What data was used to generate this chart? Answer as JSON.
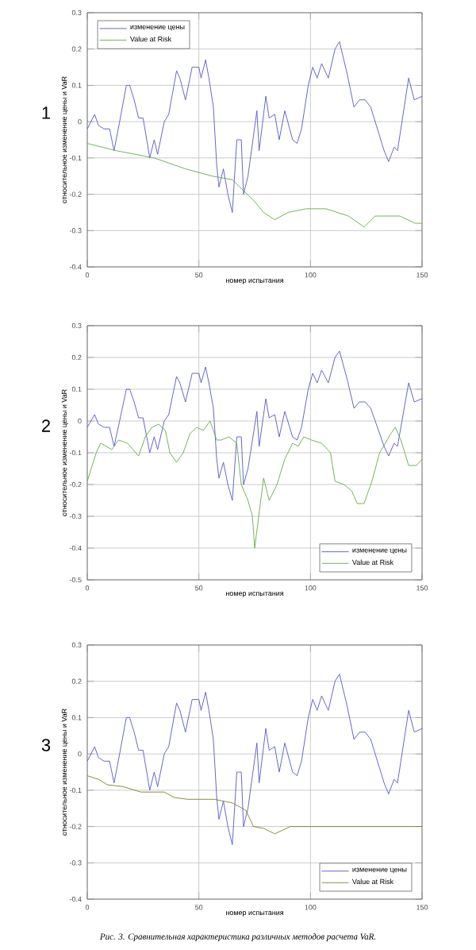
{
  "chart_data": [
    {
      "type": "line",
      "title": "1",
      "xlabel": "номер испытания",
      "ylabel": "относительное изменение цены и VaR",
      "xlim": [
        0,
        150
      ],
      "ylim": [
        -0.4,
        0.3
      ],
      "xticks": [
        0,
        50,
        100,
        150
      ],
      "yticks": [
        -0.4,
        -0.3,
        -0.2,
        -0.1,
        0,
        0.1,
        0.2,
        0.3
      ],
      "grid": true,
      "legend": "top left",
      "series": [
        {
          "name": "изменение цены",
          "color": "#5555cc",
          "x": [
            0,
            3.3,
            5,
            7.5,
            10,
            12,
            14.5,
            17.5,
            19,
            21,
            23,
            25,
            28,
            30,
            31.5,
            34.5,
            36.5,
            40,
            41.5,
            44,
            47,
            50,
            51,
            53,
            54.5,
            56.5,
            58,
            59,
            61,
            63,
            65,
            67,
            69,
            70,
            72,
            76,
            77,
            80,
            81.5,
            84,
            86,
            88.5,
            92,
            94,
            96,
            99,
            101,
            103,
            105,
            108,
            111,
            113,
            116.5,
            119.5,
            122,
            124.5,
            127,
            130,
            133,
            135,
            137.5,
            139,
            140.5,
            144,
            146.5,
            150
          ],
          "values": [
            -0.02,
            0.02,
            -0.01,
            -0.02,
            -0.02,
            -0.08,
            0.0,
            0.1,
            0.1,
            0.06,
            0.01,
            0.01,
            -0.1,
            -0.05,
            -0.09,
            0.0,
            0.02,
            0.14,
            0.12,
            0.06,
            0.15,
            0.15,
            0.12,
            0.17,
            0.12,
            0.04,
            -0.12,
            -0.18,
            -0.13,
            -0.2,
            -0.25,
            -0.05,
            -0.05,
            -0.2,
            -0.15,
            0.03,
            -0.08,
            0.07,
            0.01,
            0.02,
            -0.05,
            0.03,
            -0.05,
            -0.06,
            -0.02,
            0.1,
            0.15,
            0.12,
            0.16,
            0.12,
            0.2,
            0.22,
            0.13,
            0.04,
            0.06,
            0.06,
            0.04,
            -0.02,
            -0.08,
            -0.11,
            -0.07,
            -0.08,
            -0.02,
            0.12,
            0.06,
            0.07
          ]
        },
        {
          "name": "Value at Risk",
          "color": "#66aa44",
          "x": [
            0,
            13,
            30,
            44,
            56,
            65,
            75,
            79,
            84,
            90,
            98,
            107,
            117,
            124,
            129,
            140,
            147,
            150
          ],
          "values": [
            -0.06,
            -0.08,
            -0.1,
            -0.13,
            -0.15,
            -0.16,
            -0.22,
            -0.25,
            -0.27,
            -0.25,
            -0.24,
            -0.24,
            -0.26,
            -0.29,
            -0.26,
            -0.26,
            -0.28,
            -0.28
          ]
        }
      ]
    },
    {
      "type": "line",
      "title": "2",
      "xlabel": "номер испытания",
      "ylabel": "относительное изменение цены и VaR",
      "xlim": [
        0,
        150
      ],
      "ylim": [
        -0.5,
        0.3
      ],
      "xticks": [
        0,
        50,
        100,
        150
      ],
      "yticks": [
        -0.5,
        -0.4,
        -0.3,
        -0.2,
        -0.1,
        0,
        0.1,
        0.2,
        0.3
      ],
      "grid": true,
      "legend": "bottom right",
      "series": [
        {
          "name": "изменение цены",
          "color": "#5555cc",
          "x": [
            0,
            3.3,
            5,
            7.5,
            10,
            12,
            14.5,
            17.5,
            19,
            21,
            23,
            25,
            28,
            30,
            31.5,
            34.5,
            36.5,
            40,
            41.5,
            44,
            47,
            50,
            51,
            53,
            54.5,
            56.5,
            58,
            59,
            61,
            63,
            65,
            67,
            69,
            70,
            72,
            76,
            77,
            80,
            81.5,
            84,
            86,
            88.5,
            92,
            94,
            96,
            99,
            101,
            103,
            105,
            108,
            111,
            113,
            116.5,
            119.5,
            122,
            124.5,
            127,
            130,
            133,
            135,
            137.5,
            139,
            140.5,
            144,
            146.5,
            150
          ],
          "values": [
            -0.02,
            0.02,
            -0.01,
            -0.02,
            -0.02,
            -0.08,
            0.0,
            0.1,
            0.1,
            0.06,
            0.01,
            0.01,
            -0.1,
            -0.05,
            -0.09,
            0.0,
            0.02,
            0.14,
            0.12,
            0.06,
            0.15,
            0.15,
            0.12,
            0.17,
            0.12,
            0.04,
            -0.12,
            -0.18,
            -0.13,
            -0.2,
            -0.25,
            -0.05,
            -0.05,
            -0.2,
            -0.15,
            0.03,
            -0.08,
            0.07,
            0.01,
            0.02,
            -0.05,
            0.03,
            -0.05,
            -0.06,
            -0.02,
            0.1,
            0.15,
            0.12,
            0.16,
            0.12,
            0.2,
            0.22,
            0.13,
            0.04,
            0.06,
            0.06,
            0.04,
            -0.02,
            -0.08,
            -0.11,
            -0.07,
            -0.08,
            -0.02,
            0.12,
            0.06,
            0.07
          ]
        },
        {
          "name": "Value at Risk",
          "color": "#66aa44",
          "x": [
            0,
            4,
            6,
            11,
            14,
            18,
            23,
            26,
            29,
            32,
            35,
            37,
            40,
            43,
            46,
            49,
            52,
            55,
            58,
            60,
            63.5,
            67,
            69,
            72,
            74,
            75,
            77,
            79,
            81.5,
            85,
            88.5,
            92,
            94.5,
            97,
            100.5,
            105,
            109,
            111,
            115,
            118.5,
            121,
            124,
            127.5,
            131,
            136,
            138,
            140.5,
            144,
            147.5,
            150
          ],
          "values": [
            -0.19,
            -0.1,
            -0.07,
            -0.09,
            -0.06,
            -0.07,
            -0.11,
            -0.05,
            -0.02,
            -0.01,
            -0.03,
            -0.1,
            -0.13,
            -0.1,
            -0.04,
            -0.02,
            -0.03,
            0.0,
            -0.06,
            -0.06,
            -0.05,
            -0.07,
            -0.2,
            -0.25,
            -0.3,
            -0.4,
            -0.29,
            -0.18,
            -0.25,
            -0.2,
            -0.12,
            -0.07,
            -0.08,
            -0.05,
            -0.06,
            -0.07,
            -0.1,
            -0.19,
            -0.2,
            -0.22,
            -0.26,
            -0.26,
            -0.19,
            -0.1,
            -0.04,
            -0.02,
            -0.06,
            -0.14,
            -0.14,
            -0.12
          ]
        }
      ]
    },
    {
      "type": "line",
      "title": "3",
      "xlabel": "номер испытания",
      "ylabel": "относительное изменение цены и VaR",
      "xlim": [
        0,
        150
      ],
      "ylim": [
        -0.4,
        0.3
      ],
      "xticks": [
        0,
        50,
        100,
        150
      ],
      "yticks": [
        -0.4,
        -0.3,
        -0.2,
        -0.1,
        0,
        0.1,
        0.2,
        0.3
      ],
      "grid": true,
      "legend": "bottom right",
      "annotations": [
        "Рис. 3. Сравнительная характеристика различных методов расчета VaR."
      ],
      "series": [
        {
          "name": "изменение цены",
          "color": "#5555cc",
          "x": [
            0,
            3.3,
            5,
            7.5,
            10,
            12,
            14.5,
            17.5,
            19,
            21,
            23,
            25,
            28,
            30,
            31.5,
            34.5,
            36.5,
            40,
            41.5,
            44,
            47,
            50,
            51,
            53,
            54.5,
            56.5,
            58,
            59,
            61,
            63,
            65,
            67,
            69,
            70,
            72,
            76,
            77,
            80,
            81.5,
            84,
            86,
            88.5,
            92,
            94,
            96,
            99,
            101,
            103,
            105,
            108,
            111,
            113,
            116.5,
            119.5,
            122,
            124.5,
            127,
            130,
            133,
            135,
            137.5,
            139,
            140.5,
            144,
            146.5,
            150
          ],
          "values": [
            -0.02,
            0.02,
            -0.01,
            -0.02,
            -0.02,
            -0.08,
            0.0,
            0.1,
            0.1,
            0.06,
            0.01,
            0.01,
            -0.1,
            -0.05,
            -0.09,
            0.0,
            0.02,
            0.14,
            0.12,
            0.06,
            0.15,
            0.15,
            0.12,
            0.17,
            0.12,
            0.04,
            -0.12,
            -0.18,
            -0.13,
            -0.2,
            -0.25,
            -0.05,
            -0.05,
            -0.2,
            -0.15,
            0.03,
            -0.08,
            0.07,
            0.01,
            0.02,
            -0.05,
            0.03,
            -0.05,
            -0.06,
            -0.02,
            0.1,
            0.15,
            0.12,
            0.16,
            0.12,
            0.2,
            0.22,
            0.13,
            0.04,
            0.06,
            0.06,
            0.04,
            -0.02,
            -0.08,
            -0.11,
            -0.07,
            -0.08,
            -0.02,
            0.12,
            0.06,
            0.07
          ]
        },
        {
          "name": "Value at Risk",
          "color": "#808020",
          "x": [
            0,
            5,
            9,
            16,
            24,
            34.5,
            39,
            45,
            57,
            65,
            71,
            74.5,
            79,
            84,
            87.5,
            91,
            103,
            126,
            150
          ],
          "values": [
            -0.06,
            -0.07,
            -0.085,
            -0.09,
            -0.105,
            -0.105,
            -0.12,
            -0.125,
            -0.125,
            -0.135,
            -0.155,
            -0.2,
            -0.205,
            -0.22,
            -0.21,
            -0.2,
            -0.2,
            -0.2,
            -0.2
          ]
        }
      ]
    }
  ]
}
